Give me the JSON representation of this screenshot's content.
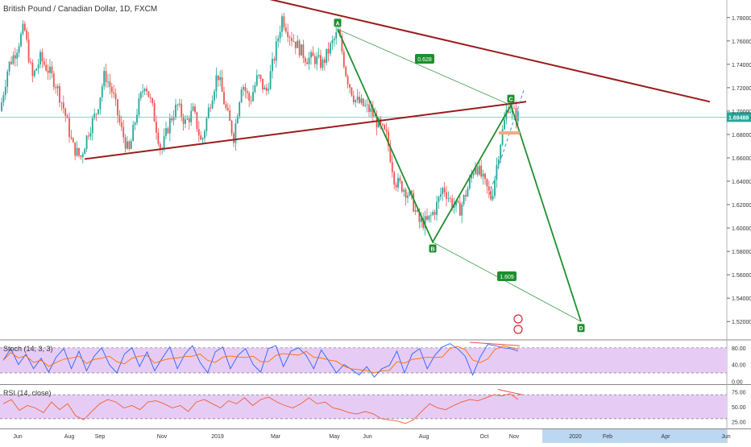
{
  "chart_data": {
    "type": "candlestick",
    "title": "British Pound / Canadian Dollar, 1D, FXCM",
    "symbol": "British Pound / Canadian Dollar",
    "interval": "1D",
    "source": "FXCM",
    "last_price": "1.69488",
    "price_axis": {
      "ylim": [
        1.505,
        1.795
      ],
      "ticks": [
        "1.78000",
        "1.76000",
        "1.74000",
        "1.72000",
        "1.70000",
        "1.68000",
        "1.66000",
        "1.64000",
        "1.62000",
        "1.60000",
        "1.58000",
        "1.56000",
        "1.54000",
        "1.52000"
      ]
    },
    "time_axis": {
      "labels": [
        "Jun",
        "Aug",
        "Sep",
        "Nov",
        "2019",
        "Mar",
        "May",
        "Jun",
        "Aug",
        "Oct",
        "Nov",
        "2020",
        "Feb",
        "Apr",
        "Jun"
      ],
      "highlight_range": [
        "Nov",
        "Jun"
      ]
    },
    "price_path": [
      [
        0,
        1.7
      ],
      [
        10,
        1.738
      ],
      [
        20,
        1.752
      ],
      [
        30,
        1.772
      ],
      [
        40,
        1.728
      ],
      [
        50,
        1.745
      ],
      [
        60,
        1.735
      ],
      [
        70,
        1.722
      ],
      [
        80,
        1.7
      ],
      [
        90,
        1.67
      ],
      [
        100,
        1.66
      ],
      [
        110,
        1.683
      ],
      [
        120,
        1.7
      ],
      [
        130,
        1.732
      ],
      [
        140,
        1.715
      ],
      [
        150,
        1.685
      ],
      [
        160,
        1.664
      ],
      [
        170,
        1.7
      ],
      [
        180,
        1.725
      ],
      [
        190,
        1.7
      ],
      [
        200,
        1.665
      ],
      [
        210,
        1.69
      ],
      [
        220,
        1.705
      ],
      [
        230,
        1.69
      ],
      [
        240,
        1.7
      ],
      [
        250,
        1.672
      ],
      [
        260,
        1.705
      ],
      [
        270,
        1.733
      ],
      [
        280,
        1.702
      ],
      [
        290,
        1.678
      ],
      [
        300,
        1.725
      ],
      [
        310,
        1.708
      ],
      [
        320,
        1.73
      ],
      [
        330,
        1.715
      ],
      [
        340,
        1.745
      ],
      [
        350,
        1.78
      ],
      [
        360,
        1.765
      ],
      [
        370,
        1.755
      ],
      [
        380,
        1.745
      ],
      [
        390,
        1.745
      ],
      [
        400,
        1.74
      ],
      [
        410,
        1.755
      ],
      [
        420,
        1.768
      ],
      [
        430,
        1.73
      ],
      [
        440,
        1.71
      ],
      [
        450,
        1.705
      ],
      [
        460,
        1.7
      ],
      [
        470,
        1.688
      ],
      [
        480,
        1.678
      ],
      [
        490,
        1.64
      ],
      [
        500,
        1.635
      ],
      [
        510,
        1.626
      ],
      [
        520,
        1.605
      ],
      [
        530,
        1.605
      ],
      [
        540,
        1.616
      ],
      [
        550,
        1.635
      ],
      [
        560,
        1.622
      ],
      [
        570,
        1.615
      ],
      [
        580,
        1.633
      ],
      [
        590,
        1.655
      ],
      [
        600,
        1.64
      ],
      [
        610,
        1.625
      ],
      [
        620,
        1.67
      ],
      [
        630,
        1.705
      ],
      [
        640,
        1.696
      ]
    ],
    "drawings": {
      "points": [
        {
          "label": "A",
          "x": 419,
          "price": 1.77
        },
        {
          "label": "B",
          "x": 537,
          "price": 1.588
        },
        {
          "label": "C",
          "x": 634,
          "price": 1.705
        },
        {
          "label": "D",
          "x": 721,
          "price": 1.52
        }
      ],
      "ratios": [
        "0.628",
        "1.609"
      ],
      "trendlines": [
        {
          "from": [
            105,
            1.659
          ],
          "to": [
            653,
            1.708
          ]
        },
        {
          "from": [
            320,
            1.798
          ],
          "to": [
            881,
            1.708
          ]
        }
      ],
      "horizontal_line": 1.69488
    },
    "stoch": {
      "label": "Stoch (14, 3, 3)",
      "ticks": [
        "80.00",
        "40.00",
        "0.00"
      ],
      "ylim": [
        -5,
        95
      ],
      "bands": [
        80,
        20
      ],
      "k": [
        50,
        78,
        40,
        65,
        30,
        55,
        22,
        58,
        78,
        30,
        72,
        25,
        60,
        80,
        40,
        20,
        65,
        80,
        35,
        70,
        25,
        55,
        82,
        30,
        65,
        85,
        45,
        20,
        70,
        82,
        30,
        62,
        78,
        40,
        22,
        78,
        85,
        35,
        72,
        80,
        62,
        30,
        75,
        48,
        20,
        40,
        28,
        15,
        35,
        10,
        30,
        38,
        72,
        20,
        65,
        78,
        30,
        62,
        82,
        90,
        78,
        60,
        15,
        58,
        88,
        85,
        80,
        78,
        72
      ]
    },
    "rsi": {
      "label": "RSI (14, close)",
      "ticks": [
        "75.00",
        "50.00",
        "25.00"
      ],
      "ylim": [
        15,
        85
      ],
      "bands": [
        70,
        30
      ],
      "values": [
        55,
        62,
        44,
        52,
        48,
        40,
        58,
        45,
        55,
        35,
        28,
        42,
        55,
        62,
        58,
        48,
        52,
        45,
        58,
        60,
        55,
        48,
        52,
        42,
        58,
        62,
        55,
        48,
        60,
        55,
        65,
        52,
        62,
        66,
        58,
        52,
        48,
        55,
        65,
        55,
        58,
        48,
        45,
        40,
        38,
        42,
        38,
        30,
        28,
        26,
        22,
        28,
        42,
        55,
        48,
        45,
        52,
        58,
        62,
        60,
        65,
        70,
        68,
        72,
        62
      ]
    }
  }
}
